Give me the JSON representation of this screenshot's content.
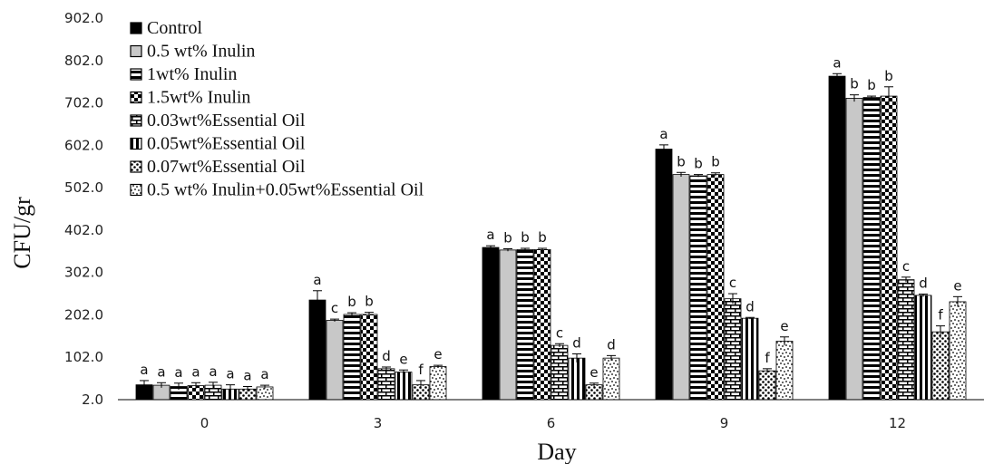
{
  "chart_data": {
    "type": "bar",
    "title": "",
    "xlabel": "Day",
    "ylabel": "CFU/gr",
    "ylim": [
      2.0,
      902.0
    ],
    "yticks": [
      "2.0",
      "102.0",
      "202.0",
      "302.0",
      "402.0",
      "502.0",
      "602.0",
      "702.0",
      "802.0",
      "902.0"
    ],
    "categories": [
      "0",
      "3",
      "6",
      "9",
      "12"
    ],
    "legend_position": "top-left",
    "series": [
      {
        "name": "Control",
        "pattern": "solid",
        "values": [
          37,
          237,
          361,
          593,
          765
        ],
        "errors": [
          10,
          22,
          4,
          10,
          6
        ],
        "letters": [
          "a",
          "a",
          "a",
          "a",
          "a"
        ]
      },
      {
        "name": "0.5 wt% Inulin",
        "pattern": "gray",
        "values": [
          36,
          189,
          355,
          533,
          713
        ],
        "errors": [
          6,
          3,
          3,
          5,
          8
        ],
        "letters": [
          "a",
          "c",
          "b",
          "b",
          "b"
        ]
      },
      {
        "name": "1wt% Inulin",
        "pattern": "hstripes",
        "values": [
          33,
          203,
          356,
          530,
          715
        ],
        "errors": [
          8,
          4,
          3,
          3,
          3
        ],
        "letters": [
          "a",
          "b",
          "b",
          "b",
          "b"
        ]
      },
      {
        "name": "1.5wt% Inulin",
        "pattern": "checker",
        "values": [
          35,
          203,
          356,
          533,
          718
        ],
        "errors": [
          7,
          5,
          3,
          4,
          22
        ],
        "letters": [
          "a",
          "b",
          "b",
          "b",
          "b"
        ]
      },
      {
        "name": "0.03wt%Essential Oil",
        "pattern": "brick",
        "values": [
          36,
          75,
          130,
          240,
          285
        ],
        "errors": [
          7,
          4,
          4,
          12,
          6
        ],
        "letters": [
          "a",
          "d",
          "c",
          "c",
          "c"
        ]
      },
      {
        "name": "0.05wt%Essential Oil",
        "pattern": "vstripes",
        "values": [
          27,
          67,
          100,
          194,
          248
        ],
        "errors": [
          10,
          5,
          10,
          2,
          3
        ],
        "letters": [
          "a",
          "e",
          "d",
          "d",
          "d"
        ]
      },
      {
        "name": "0.07wt%Essential Oil",
        "pattern": "dots",
        "values": [
          27,
          37,
          37,
          70,
          162
        ],
        "errors": [
          6,
          10,
          4,
          5,
          14
        ],
        "letters": [
          "a",
          "f",
          "e",
          "f",
          "f"
        ]
      },
      {
        "name": "0.5 wt% Inulin+0.05wt%Essential Oil",
        "pattern": "speckle",
        "values": [
          32,
          80,
          100,
          140,
          233
        ],
        "errors": [
          4,
          3,
          6,
          10,
          12
        ],
        "letters": [
          "a",
          "e",
          "d",
          "e",
          "e"
        ]
      }
    ]
  }
}
